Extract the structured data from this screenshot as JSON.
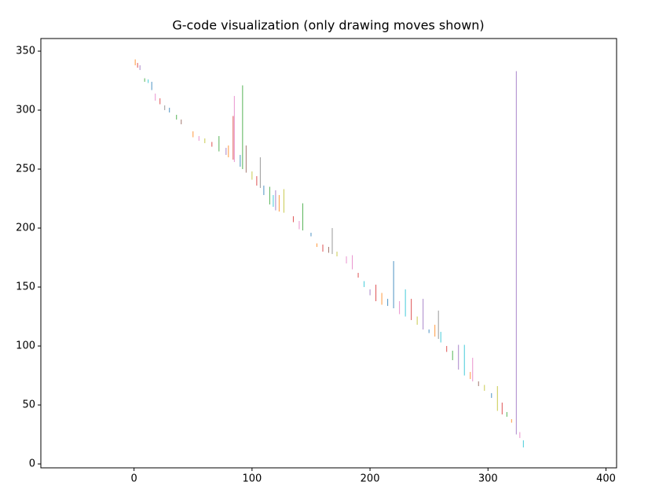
{
  "chart_data": {
    "type": "segments",
    "title": "G-code visualization (only drawing moves shown)",
    "xlim": [
      -79,
      409
    ],
    "ylim": [
      -3.3,
      360.7
    ],
    "xticks": [
      0,
      100,
      200,
      300,
      400
    ],
    "yticks": [
      0,
      50,
      100,
      150,
      200,
      250,
      300,
      350
    ],
    "grid": false,
    "series": [
      {
        "color": "#ff7f0e",
        "x": [
          1,
          1
        ],
        "values": [
          338,
          343
        ]
      },
      {
        "color": "#d62728",
        "x": [
          3,
          3
        ],
        "values": [
          336,
          340
        ]
      },
      {
        "color": "#9467bd",
        "x": [
          5,
          5
        ],
        "values": [
          334,
          338
        ]
      },
      {
        "color": "#2ca02c",
        "x": [
          9,
          9
        ],
        "values": [
          324,
          327
        ]
      },
      {
        "color": "#17becf",
        "x": [
          12,
          12
        ],
        "values": [
          323,
          326
        ]
      },
      {
        "color": "#1f77b4",
        "x": [
          15,
          15
        ],
        "values": [
          317,
          324
        ]
      },
      {
        "color": "#e377c2",
        "x": [
          18,
          18
        ],
        "values": [
          308,
          314
        ]
      },
      {
        "color": "#d62728",
        "x": [
          22,
          22
        ],
        "values": [
          305,
          310
        ]
      },
      {
        "color": "#7f7f7f",
        "x": [
          26,
          26
        ],
        "values": [
          300,
          304
        ]
      },
      {
        "color": "#1f77b4",
        "x": [
          30,
          30
        ],
        "values": [
          298,
          302
        ]
      },
      {
        "color": "#2ca02c",
        "x": [
          36,
          36
        ],
        "values": [
          292,
          296
        ]
      },
      {
        "color": "#8c564b",
        "x": [
          40,
          40
        ],
        "values": [
          288,
          292
        ]
      },
      {
        "color": "#ff7f0e",
        "x": [
          50,
          50
        ],
        "values": [
          277,
          282
        ]
      },
      {
        "color": "#e377c2",
        "x": [
          55,
          55
        ],
        "values": [
          274,
          278
        ]
      },
      {
        "color": "#bcbd22",
        "x": [
          60,
          60
        ],
        "values": [
          272,
          276
        ]
      },
      {
        "color": "#d62728",
        "x": [
          66,
          66
        ],
        "values": [
          269,
          273
        ]
      },
      {
        "color": "#2ca02c",
        "x": [
          72,
          72
        ],
        "values": [
          265,
          278
        ]
      },
      {
        "color": "#9467bd",
        "x": [
          78,
          78
        ],
        "values": [
          262,
          268
        ]
      },
      {
        "color": "#ff7f0e",
        "x": [
          80,
          80
        ],
        "values": [
          260,
          270
        ]
      },
      {
        "color": "#d62728",
        "x": [
          84,
          84
        ],
        "values": [
          258,
          295
        ]
      },
      {
        "color": "#e377c2",
        "x": [
          85,
          85
        ],
        "values": [
          256,
          312
        ]
      },
      {
        "color": "#1f77b4",
        "x": [
          90,
          90
        ],
        "values": [
          252,
          262
        ]
      },
      {
        "color": "#2ca02c",
        "x": [
          92,
          92
        ],
        "values": [
          250,
          321
        ]
      },
      {
        "color": "#8c564b",
        "x": [
          95,
          95
        ],
        "values": [
          247,
          270
        ]
      },
      {
        "color": "#bcbd22",
        "x": [
          100,
          100
        ],
        "values": [
          241,
          248
        ]
      },
      {
        "color": "#d62728",
        "x": [
          104,
          104
        ],
        "values": [
          236,
          244
        ]
      },
      {
        "color": "#7f7f7f",
        "x": [
          107,
          107
        ],
        "values": [
          234,
          260
        ]
      },
      {
        "color": "#1f77b4",
        "x": [
          110,
          110
        ],
        "values": [
          228,
          236
        ]
      },
      {
        "color": "#2ca02c",
        "x": [
          115,
          115
        ],
        "values": [
          220,
          235
        ]
      },
      {
        "color": "#17becf",
        "x": [
          118,
          118
        ],
        "values": [
          218,
          228
        ]
      },
      {
        "color": "#9467bd",
        "x": [
          120,
          120
        ],
        "values": [
          215,
          232
        ]
      },
      {
        "color": "#ff7f0e",
        "x": [
          123,
          123
        ],
        "values": [
          214,
          228
        ]
      },
      {
        "color": "#bcbd22",
        "x": [
          127,
          127
        ],
        "values": [
          213,
          233
        ]
      },
      {
        "color": "#d62728",
        "x": [
          135,
          135
        ],
        "values": [
          205,
          210
        ]
      },
      {
        "color": "#e377c2",
        "x": [
          140,
          140
        ],
        "values": [
          199,
          206
        ]
      },
      {
        "color": "#2ca02c",
        "x": [
          143,
          143
        ],
        "values": [
          198,
          221
        ]
      },
      {
        "color": "#1f77b4",
        "x": [
          150,
          150
        ],
        "values": [
          193,
          196
        ]
      },
      {
        "color": "#ff7f0e",
        "x": [
          155,
          155
        ],
        "values": [
          184,
          187
        ]
      },
      {
        "color": "#d62728",
        "x": [
          160,
          160
        ],
        "values": [
          180,
          186
        ]
      },
      {
        "color": "#8c564b",
        "x": [
          165,
          165
        ],
        "values": [
          179,
          184
        ]
      },
      {
        "color": "#7f7f7f",
        "x": [
          168,
          168
        ],
        "values": [
          178,
          200
        ]
      },
      {
        "color": "#bcbd22",
        "x": [
          172,
          172
        ],
        "values": [
          176,
          180
        ]
      },
      {
        "color": "#e377c2",
        "x": [
          180,
          180
        ],
        "values": [
          170,
          176
        ]
      },
      {
        "color": "#e377c2",
        "x": [
          185,
          185
        ],
        "values": [
          165,
          177
        ]
      },
      {
        "color": "#d62728",
        "x": [
          190,
          190
        ],
        "values": [
          158,
          162
        ]
      },
      {
        "color": "#17becf",
        "x": [
          195,
          195
        ],
        "values": [
          150,
          155
        ]
      },
      {
        "color": "#9467bd",
        "x": [
          200,
          200
        ],
        "values": [
          143,
          148
        ]
      },
      {
        "color": "#d62728",
        "x": [
          205,
          205
        ],
        "values": [
          138,
          152
        ]
      },
      {
        "color": "#ff7f0e",
        "x": [
          210,
          210
        ],
        "values": [
          135,
          145
        ]
      },
      {
        "color": "#1f77b4",
        "x": [
          215,
          215
        ],
        "values": [
          134,
          140
        ]
      },
      {
        "color": "#1f77b4",
        "x": [
          220,
          220
        ],
        "values": [
          132,
          172
        ]
      },
      {
        "color": "#e377c2",
        "x": [
          225,
          225
        ],
        "values": [
          127,
          138
        ]
      },
      {
        "color": "#17becf",
        "x": [
          230,
          230
        ],
        "values": [
          125,
          148
        ]
      },
      {
        "color": "#d62728",
        "x": [
          235,
          235
        ],
        "values": [
          122,
          140
        ]
      },
      {
        "color": "#bcbd22",
        "x": [
          240,
          240
        ],
        "values": [
          118,
          125
        ]
      },
      {
        "color": "#9467bd",
        "x": [
          245,
          245
        ],
        "values": [
          114,
          140
        ]
      },
      {
        "color": "#1f77b4",
        "x": [
          250,
          250
        ],
        "values": [
          111,
          114
        ]
      },
      {
        "color": "#ff7f0e",
        "x": [
          255,
          255
        ],
        "values": [
          108,
          118
        ]
      },
      {
        "color": "#7f7f7f",
        "x": [
          258,
          258
        ],
        "values": [
          106,
          130
        ]
      },
      {
        "color": "#17becf",
        "x": [
          260,
          260
        ],
        "values": [
          103,
          112
        ]
      },
      {
        "color": "#d62728",
        "x": [
          265,
          265
        ],
        "values": [
          95,
          100
        ]
      },
      {
        "color": "#2ca02c",
        "x": [
          270,
          270
        ],
        "values": [
          88,
          96
        ]
      },
      {
        "color": "#9467bd",
        "x": [
          275,
          275
        ],
        "values": [
          80,
          101
        ]
      },
      {
        "color": "#17becf",
        "x": [
          280,
          280
        ],
        "values": [
          75,
          101
        ]
      },
      {
        "color": "#ff7f0e",
        "x": [
          285,
          285
        ],
        "values": [
          72,
          78
        ]
      },
      {
        "color": "#e377c2",
        "x": [
          287,
          287
        ],
        "values": [
          70,
          90
        ]
      },
      {
        "color": "#8c564b",
        "x": [
          292,
          292
        ],
        "values": [
          66,
          70
        ]
      },
      {
        "color": "#bcbd22",
        "x": [
          297,
          297
        ],
        "values": [
          62,
          67
        ]
      },
      {
        "color": "#1f77b4",
        "x": [
          303,
          303
        ],
        "values": [
          56,
          60
        ]
      },
      {
        "color": "#bcbd22",
        "x": [
          308,
          308
        ],
        "values": [
          45,
          66
        ]
      },
      {
        "color": "#d62728",
        "x": [
          312,
          312
        ],
        "values": [
          42,
          52
        ]
      },
      {
        "color": "#2ca02c",
        "x": [
          316,
          316
        ],
        "values": [
          40,
          44
        ]
      },
      {
        "color": "#ff7f0e",
        "x": [
          320,
          320
        ],
        "values": [
          35,
          38
        ]
      },
      {
        "color": "#9467bd",
        "x": [
          324,
          324
        ],
        "values": [
          25,
          333
        ]
      },
      {
        "color": "#e377c2",
        "x": [
          327,
          327
        ],
        "values": [
          22,
          27
        ]
      },
      {
        "color": "#17becf",
        "x": [
          330,
          330
        ],
        "values": [
          14,
          20
        ]
      }
    ]
  }
}
